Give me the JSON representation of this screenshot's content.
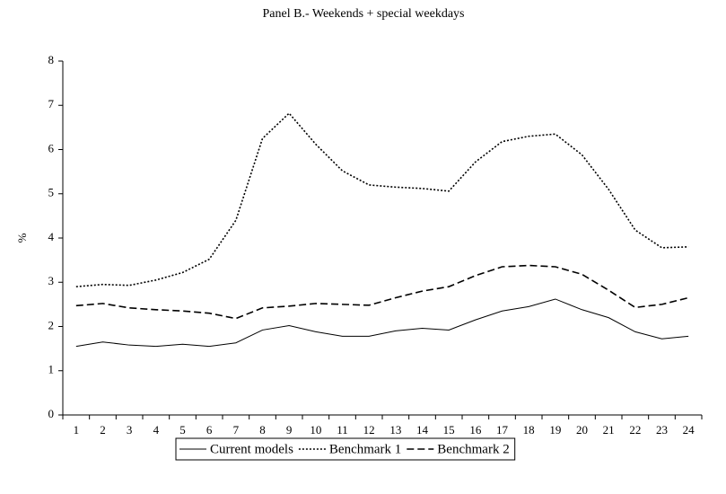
{
  "chart_data": {
    "type": "line",
    "title": "Panel B.- Weekends + special weekdays",
    "y_label": "%",
    "categories": [
      "1",
      "2",
      "3",
      "4",
      "5",
      "6",
      "7",
      "8",
      "9",
      "10",
      "11",
      "12",
      "13",
      "14",
      "15",
      "16",
      "17",
      "18",
      "19",
      "20",
      "21",
      "22",
      "23",
      "24"
    ],
    "series": [
      {
        "name": "Current models",
        "color": "#000000",
        "dash": "solid",
        "values": [
          1.55,
          1.65,
          1.58,
          1.55,
          1.6,
          1.55,
          1.63,
          1.92,
          2.02,
          1.88,
          1.78,
          1.78,
          1.9,
          1.96,
          1.92,
          2.15,
          2.35,
          2.45,
          2.62,
          2.38,
          2.2,
          1.88,
          1.72,
          1.78
        ]
      },
      {
        "name": "Benchmark 1",
        "color": "#000000",
        "dash": "dotted",
        "values": [
          2.9,
          2.95,
          2.93,
          3.05,
          3.22,
          3.52,
          4.4,
          6.25,
          6.82,
          6.12,
          5.52,
          5.2,
          5.15,
          5.12,
          5.06,
          5.72,
          6.18,
          6.3,
          6.35,
          5.88,
          5.1,
          4.18,
          3.78,
          3.8
        ]
      },
      {
        "name": "Benchmark 2",
        "color": "#000000",
        "dash": "dashed",
        "values": [
          2.47,
          2.52,
          2.42,
          2.38,
          2.35,
          2.3,
          2.18,
          2.42,
          2.46,
          2.52,
          2.5,
          2.48,
          2.65,
          2.8,
          2.9,
          3.15,
          3.35,
          3.38,
          3.35,
          3.18,
          2.82,
          2.43,
          2.5,
          2.65
        ]
      }
    ],
    "ylim": [
      0,
      8
    ],
    "yticks": [
      0,
      1,
      2,
      3,
      4,
      5,
      6,
      7,
      8
    ],
    "grid": false,
    "legend": "bottom"
  }
}
